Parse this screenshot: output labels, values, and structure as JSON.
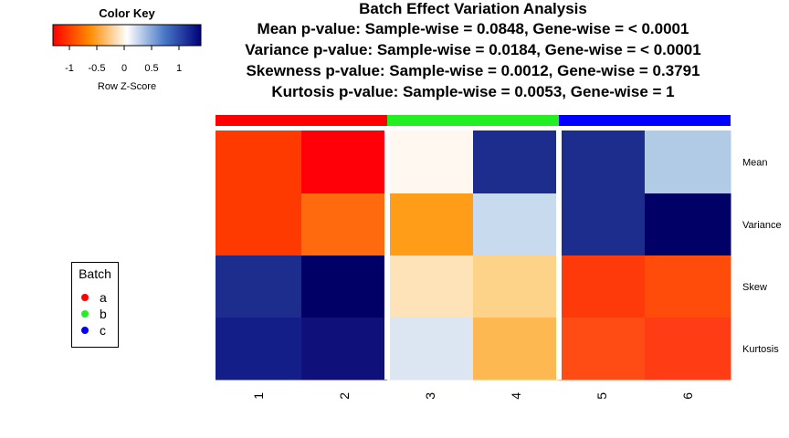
{
  "title_lines": [
    "Batch Effect Variation Analysis",
    "Mean p-value: Sample-wise = 0.0848, Gene-wise = < 0.0001",
    "Variance p-value: Sample-wise = 0.0184, Gene-wise = < 0.0001",
    "Skewness p-value: Sample-wise = 0.0012, Gene-wise = 0.3791",
    "Kurtosis p-value: Sample-wise = 0.0053, Gene-wise = 1"
  ],
  "color_key": {
    "title": "Color Key",
    "label": "Row Z-Score",
    "ticks": [
      "-1",
      "-0.5",
      "0",
      "0.5",
      "1"
    ],
    "tick_values": [
      -1,
      -0.5,
      0,
      0.5,
      1
    ],
    "range": [
      -1.3,
      1.4
    ],
    "gradient": [
      "#ff0000",
      "#ff8c00",
      "#ffffff",
      "#4a7ac8",
      "#00007a"
    ]
  },
  "legend": {
    "title": "Batch",
    "items": [
      {
        "label": "a",
        "color": "#ff0000"
      },
      {
        "label": "b",
        "color": "#22ee22"
      },
      {
        "label": "c",
        "color": "#0000ff"
      }
    ]
  },
  "chart_data": {
    "type": "heatmap",
    "columns": [
      "1",
      "2",
      "3",
      "4",
      "5",
      "6"
    ],
    "rows": [
      "Mean",
      "Variance",
      "Skew",
      "Kurtosis"
    ],
    "column_batches": [
      "a",
      "a",
      "b",
      "b",
      "c",
      "c"
    ],
    "batch_colors": {
      "a": "#ff0000",
      "b": "#22ee22",
      "c": "#0000ff"
    },
    "colors": [
      [
        "#ff3a00",
        "#ff0008",
        "#fff8f0",
        "#1c2d8e",
        "#1c2d8e",
        "#b1cbe6"
      ],
      [
        "#ff3a00",
        "#ff6a0f",
        "#ff9d18",
        "#c8dbee",
        "#1c2d8e",
        "#000066"
      ],
      [
        "#1c2d8e",
        "#000066",
        "#fde3b7",
        "#fdd38a",
        "#ff3a0a",
        "#ff4c0a"
      ],
      [
        "#141e88",
        "#10107a",
        "#dce6f2",
        "#fdb851",
        "#ff4c14",
        "#ff3c14"
      ]
    ]
  }
}
